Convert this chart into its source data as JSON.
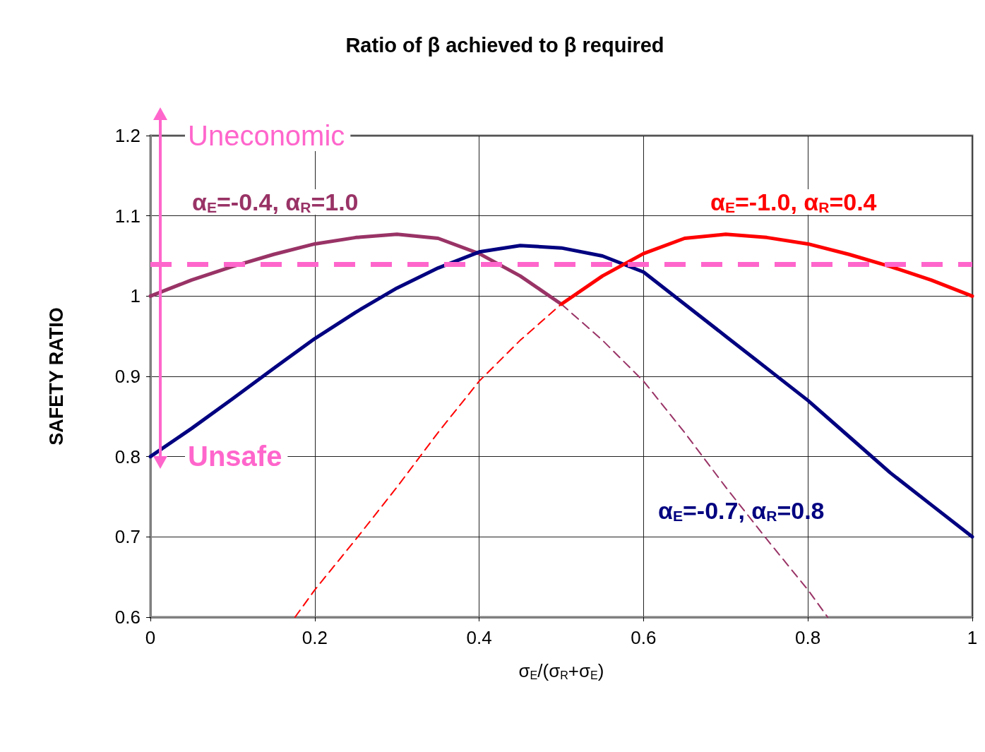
{
  "chart_data": {
    "type": "line",
    "title": "Ratio of β achieved to β required",
    "xlabel": "σ$_{E}$/(σ$_{R}$+σ$_{E}$)",
    "ylabel": "SAFETY RATIO",
    "series": [
      {
        "name": "α$_{E}$=-0.4, α$_{R}$=1.0",
        "color": "#993366",
        "line_style": "solid",
        "x": [
          0,
          0.05,
          0.1,
          0.15,
          0.2,
          0.25,
          0.3,
          0.35,
          0.4,
          0.45,
          0.5
        ],
        "values": [
          1.0,
          1.02,
          1.037,
          1.052,
          1.065,
          1.073,
          1.077,
          1.072,
          1.053,
          1.025,
          0.99
        ]
      },
      {
        "color": "#993366",
        "line_style": "dashed",
        "x": [
          0.5,
          0.55,
          0.6,
          0.65,
          0.7,
          0.75,
          0.8,
          0.824
        ],
        "values": [
          0.99,
          0.945,
          0.894,
          0.83,
          0.762,
          0.697,
          0.634,
          0.6
        ]
      },
      {
        "name": "α$_{E}$=-0.7, α$_{R}$=0.8",
        "color": "#000080",
        "line_style": "solid",
        "x": [
          0,
          0.05,
          0.1,
          0.15,
          0.2,
          0.25,
          0.3,
          0.35,
          0.4,
          0.45,
          0.5,
          0.55,
          0.6,
          0.65,
          0.7,
          0.75,
          0.8,
          0.85,
          0.9,
          0.95,
          1
        ],
        "values": [
          0.8,
          0.835,
          0.872,
          0.91,
          0.947,
          0.98,
          1.01,
          1.035,
          1.055,
          1.063,
          1.06,
          1.05,
          1.03,
          0.99,
          0.95,
          0.91,
          0.87,
          0.825,
          0.78,
          0.74,
          0.7
        ]
      },
      {
        "color": "#ff0000",
        "line_style": "dashed",
        "x": [
          0.176,
          0.2,
          0.25,
          0.3,
          0.35,
          0.4,
          0.45,
          0.5
        ],
        "values": [
          0.6,
          0.634,
          0.697,
          0.762,
          0.83,
          0.894,
          0.945,
          0.99
        ]
      },
      {
        "name": "α$_{E}$=-1.0, α$_{R}$=0.4",
        "color": "#ff0000",
        "line_style": "solid",
        "x": [
          0.5,
          0.55,
          0.6,
          0.65,
          0.7,
          0.75,
          0.8,
          0.85,
          0.9,
          0.95,
          1
        ],
        "values": [
          0.99,
          1.025,
          1.053,
          1.072,
          1.077,
          1.073,
          1.065,
          1.052,
          1.037,
          1.02,
          1.0
        ]
      }
    ],
    "xlim": [
      0,
      1
    ],
    "xticks": [
      0,
      0.2,
      0.4,
      0.6,
      0.8,
      1
    ],
    "ylim": [
      0.6,
      1.2
    ],
    "yticks": [
      0.6,
      0.7,
      0.8,
      0.9,
      1,
      1.1,
      1.2
    ],
    "ref_lines": [
      {
        "axis": "y",
        "value": 1.04,
        "color": "#ff66cc",
        "line_style": "dashed"
      }
    ],
    "annotations": [
      "Uneconomic",
      "Unsafe"
    ],
    "grid": true,
    "legend": false,
    "marker": "none"
  }
}
